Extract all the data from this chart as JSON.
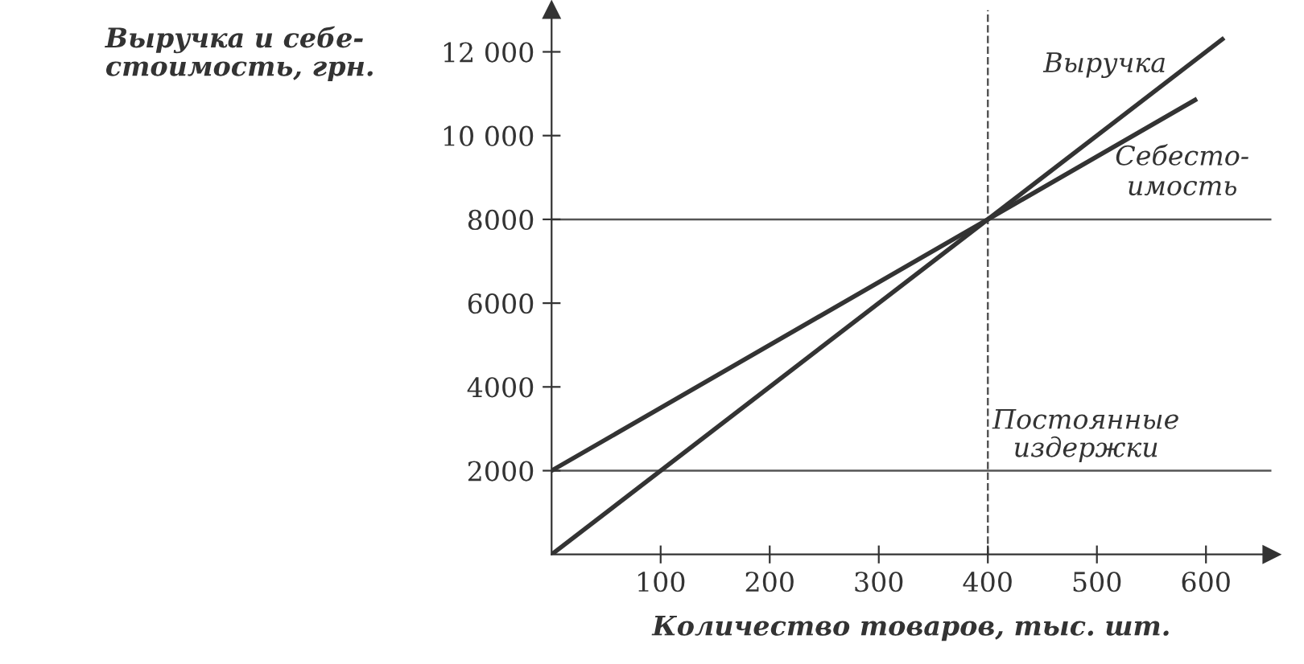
{
  "chart_data": {
    "type": "line",
    "xlabel": "Количество товаров, тыс. шт.",
    "ylabel": "Выручка и себе-\nстоимость, грн.",
    "xlim": [
      0,
      660
    ],
    "ylim": [
      0,
      13000
    ],
    "xticks": [
      100,
      200,
      300,
      400,
      500,
      600
    ],
    "yticks": [
      2000,
      4000,
      6000,
      8000,
      {
        "value": 10000,
        "label": "10 000"
      },
      {
        "value": 12000,
        "label": "12 000"
      }
    ],
    "series": [
      {
        "name": "Выручка",
        "color": "#333333",
        "x": [
          0,
          615
        ],
        "values": [
          0,
          12300
        ]
      },
      {
        "name": "Себесто-\nимость",
        "color": "#333333",
        "x": [
          0,
          590
        ],
        "values": [
          2000,
          10850
        ]
      }
    ],
    "ref_lines": [
      {
        "axis": "y",
        "value": 2000,
        "line_style": "solid",
        "color": "#555555"
      },
      {
        "axis": "y",
        "value": 8000,
        "line_style": "solid",
        "color": "#555555"
      },
      {
        "axis": "x",
        "value": 400,
        "line_style": "dashed",
        "color": "#555555"
      }
    ],
    "annotations": [
      {
        "text": "Постоянные\nиздержки",
        "x": 490,
        "y": 2000
      }
    ],
    "grid": false,
    "legend": false,
    "marker": "none",
    "line_style": "solid"
  }
}
